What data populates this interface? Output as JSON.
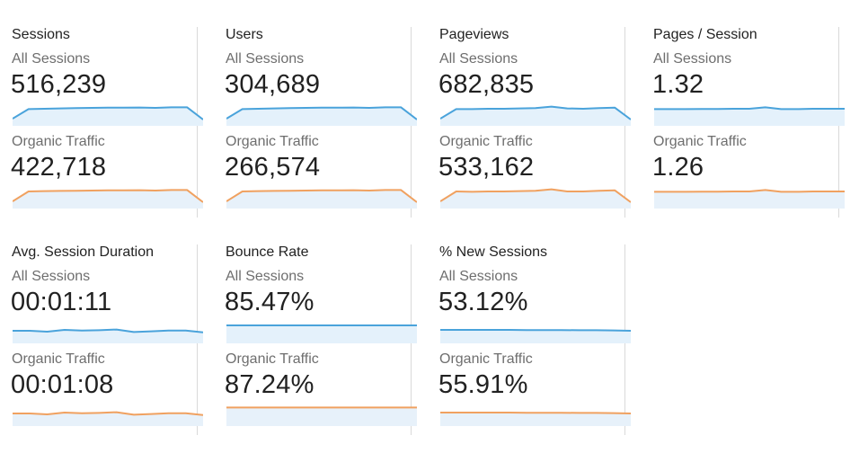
{
  "segments": {
    "all": "All Sessions",
    "organic": "Organic Traffic"
  },
  "colors": {
    "all_line": "#4aa3db",
    "organic_line": "#f0a160",
    "fill_all": "#e4f1fb",
    "fill_organic": "#e7f1fa",
    "divider": "#d9d9d9"
  },
  "metrics": [
    {
      "title": "Sessions",
      "all_value": "516,239",
      "organic_value": "422,718",
      "all_trend": [
        0.25,
        0.78,
        0.8,
        0.82,
        0.84,
        0.85,
        0.86,
        0.86,
        0.87,
        0.85,
        0.88,
        0.88,
        0.2
      ],
      "organic_trend": [
        0.25,
        0.8,
        0.82,
        0.83,
        0.84,
        0.85,
        0.86,
        0.86,
        0.87,
        0.85,
        0.88,
        0.88,
        0.2
      ]
    },
    {
      "title": "Users",
      "all_value": "304,689",
      "organic_value": "266,574",
      "all_trend": [
        0.25,
        0.78,
        0.8,
        0.82,
        0.84,
        0.85,
        0.86,
        0.86,
        0.87,
        0.85,
        0.88,
        0.88,
        0.2
      ],
      "organic_trend": [
        0.25,
        0.8,
        0.82,
        0.83,
        0.84,
        0.85,
        0.86,
        0.86,
        0.87,
        0.85,
        0.88,
        0.88,
        0.2
      ]
    },
    {
      "title": "Pageviews",
      "all_value": "682,835",
      "organic_value": "533,162",
      "all_trend": [
        0.25,
        0.78,
        0.78,
        0.8,
        0.8,
        0.82,
        0.84,
        0.92,
        0.82,
        0.8,
        0.84,
        0.86,
        0.2
      ],
      "organic_trend": [
        0.25,
        0.8,
        0.78,
        0.8,
        0.8,
        0.82,
        0.84,
        0.92,
        0.8,
        0.8,
        0.84,
        0.86,
        0.2
      ]
    },
    {
      "title": "Pages / Session",
      "all_value": "1.32",
      "organic_value": "1.26",
      "all_trend": [
        0.78,
        0.78,
        0.78,
        0.79,
        0.79,
        0.8,
        0.8,
        0.88,
        0.78,
        0.78,
        0.8,
        0.8,
        0.8
      ],
      "organic_trend": [
        0.78,
        0.78,
        0.78,
        0.79,
        0.79,
        0.8,
        0.8,
        0.88,
        0.78,
        0.78,
        0.8,
        0.8,
        0.8
      ]
    },
    {
      "title": "Avg. Session Duration",
      "all_value": "00:01:11",
      "organic_value": "00:01:08",
      "all_trend": [
        0.55,
        0.55,
        0.5,
        0.6,
        0.56,
        0.58,
        0.62,
        0.48,
        0.52,
        0.56,
        0.56,
        0.46
      ],
      "organic_trend": [
        0.55,
        0.55,
        0.5,
        0.6,
        0.56,
        0.58,
        0.62,
        0.48,
        0.52,
        0.56,
        0.56,
        0.46
      ]
    },
    {
      "title": "Bounce Rate",
      "all_value": "85.47%",
      "organic_value": "87.24%",
      "all_trend": [
        0.85,
        0.85,
        0.85,
        0.85,
        0.85,
        0.85,
        0.85,
        0.85,
        0.85,
        0.85,
        0.85,
        0.85
      ],
      "organic_trend": [
        0.88,
        0.88,
        0.88,
        0.88,
        0.88,
        0.88,
        0.88,
        0.88,
        0.88,
        0.88,
        0.88,
        0.88
      ]
    },
    {
      "title": "% New Sessions",
      "all_value": "53.12%",
      "organic_value": "55.91%",
      "all_trend": [
        0.6,
        0.6,
        0.6,
        0.6,
        0.6,
        0.59,
        0.59,
        0.59,
        0.58,
        0.58,
        0.57,
        0.55
      ],
      "organic_trend": [
        0.6,
        0.6,
        0.6,
        0.6,
        0.6,
        0.59,
        0.59,
        0.59,
        0.58,
        0.58,
        0.57,
        0.55
      ]
    }
  ]
}
